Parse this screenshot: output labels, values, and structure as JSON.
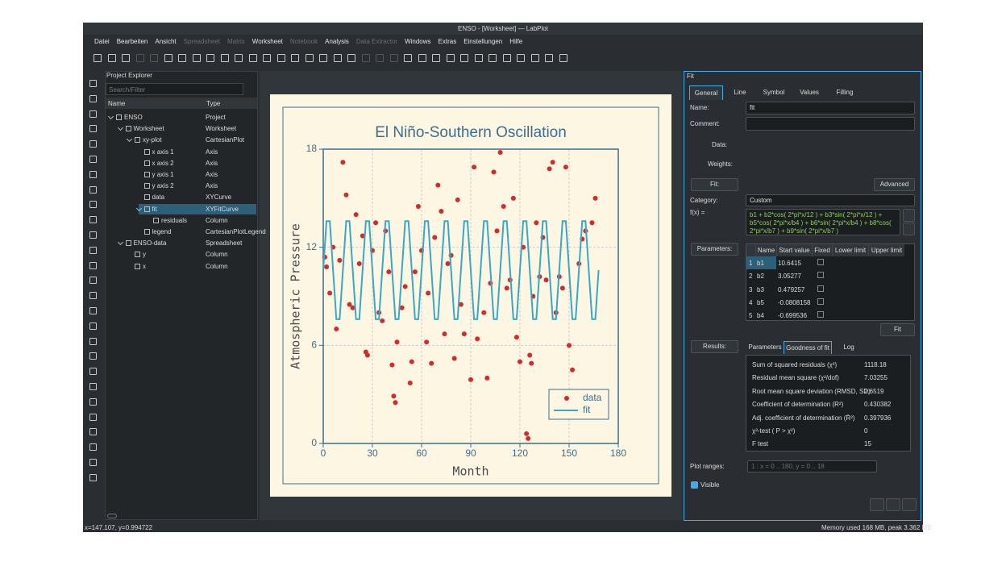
{
  "window": {
    "title": "ENSO - [Worksheet] — LabPlot"
  },
  "menu": [
    {
      "text": "Datei",
      "enabled": true
    },
    {
      "text": "Bearbeiten",
      "enabled": true
    },
    {
      "text": "Ansicht",
      "enabled": true
    },
    {
      "text": "Spreadsheet",
      "enabled": false
    },
    {
      "text": "Matrix",
      "enabled": false
    },
    {
      "text": "Worksheet",
      "enabled": true
    },
    {
      "text": "Notebook",
      "enabled": false
    },
    {
      "text": "Analysis",
      "enabled": true
    },
    {
      "text": "Data Extractor",
      "enabled": false
    },
    {
      "text": "Windows",
      "enabled": true
    },
    {
      "text": "Extras",
      "enabled": true
    },
    {
      "text": "Einstellungen",
      "enabled": true
    },
    {
      "text": "Hilfe",
      "enabled": true
    }
  ],
  "explorer": {
    "title": "Project Explorer",
    "search_placeholder": "Search/Filter",
    "columns": [
      "Name",
      "Type"
    ],
    "tree": [
      {
        "name": "ENSO",
        "type": "Project",
        "children": [
          {
            "name": "Worksheet",
            "type": "Worksheet",
            "children": [
              {
                "name": "xy-plot",
                "type": "CartesianPlot",
                "children": [
                  {
                    "name": "x axis 1",
                    "type": "Axis"
                  },
                  {
                    "name": "x axis 2",
                    "type": "Axis"
                  },
                  {
                    "name": "y axis 1",
                    "type": "Axis"
                  },
                  {
                    "name": "y axis 2",
                    "type": "Axis"
                  },
                  {
                    "name": "data",
                    "type": "XYCurve"
                  },
                  {
                    "name": "fit",
                    "type": "XYFitCurve",
                    "selected": true,
                    "children": [
                      {
                        "name": "residuals",
                        "type": "Column"
                      }
                    ]
                  },
                  {
                    "name": "legend",
                    "type": "CartesianPlotLegend"
                  }
                ]
              }
            ]
          },
          {
            "name": "ENSO-data",
            "type": "Spreadsheet",
            "children": [
              {
                "name": "y",
                "type": "Column"
              },
              {
                "name": "x",
                "type": "Column"
              }
            ]
          }
        ]
      }
    ]
  },
  "chart_data": {
    "type": "scatter",
    "title": "El Niño-Southern Oscillation",
    "x_label": "Month",
    "y_label": "Atmospheric Pressure",
    "xlim": [
      0,
      180
    ],
    "ylim": [
      0,
      18
    ],
    "xticks": [
      0,
      30,
      60,
      90,
      120,
      150,
      180
    ],
    "yticks": [
      0,
      6,
      12,
      18
    ],
    "grid": true,
    "legend": "lower right",
    "series": [
      {
        "name": "data",
        "color": "#d42a2a",
        "mode": "markers",
        "x": [
          1,
          2,
          4,
          6,
          8,
          10,
          12,
          14,
          16,
          18,
          20,
          22,
          24,
          26,
          27,
          30,
          32,
          34,
          36,
          38,
          40,
          42,
          43,
          44,
          45,
          48,
          50,
          53,
          54,
          56,
          58,
          60,
          63,
          64,
          66,
          68,
          70,
          72,
          74,
          76,
          78,
          80,
          82,
          84,
          86,
          90,
          92,
          94,
          98,
          100,
          102,
          104,
          106,
          108,
          110,
          112,
          114,
          116,
          118,
          120,
          122,
          124,
          125,
          126,
          127,
          128,
          130,
          132,
          134,
          136,
          138,
          140,
          142,
          144,
          146,
          148,
          150,
          152,
          156,
          158,
          160,
          164,
          166
        ],
        "values": [
          11.4,
          10.8,
          9.2,
          12.0,
          7.0,
          11.2,
          17.2,
          15.2,
          8.5,
          8.3,
          14.0,
          11.0,
          12.7,
          5.6,
          5.4,
          11.8,
          13.5,
          8.0,
          7.5,
          13.0,
          10.5,
          4.8,
          2.9,
          2.5,
          6.2,
          8.3,
          9.6,
          3.7,
          5.0,
          10.5,
          14.5,
          11.8,
          6.2,
          9.2,
          4.9,
          12.6,
          15.8,
          14.2,
          6.7,
          11.0,
          11.5,
          5.2,
          14.9,
          8.5,
          6.7,
          3.9,
          16.9,
          6.4,
          8.0,
          4.0,
          9.8,
          16.6,
          13.0,
          17.8,
          14.5,
          9.5,
          10.0,
          15.0,
          6.5,
          5.0,
          12.0,
          0.6,
          0.3,
          5.4,
          4.9,
          9.0,
          13.5,
          10.2,
          12.6,
          10.0,
          16.8,
          17.2,
          8.0,
          10.2,
          9.5,
          16.9,
          6.0,
          4.5,
          11.0,
          12.5,
          13.0,
          13.5,
          15.0
        ]
      },
      {
        "name": "fit",
        "color": "#36a9c9",
        "mode": "line",
        "x": [
          0,
          2,
          4,
          6,
          8,
          10,
          12,
          14,
          16,
          18,
          20,
          22,
          24,
          26,
          28,
          30,
          32,
          34,
          36,
          38,
          40,
          42,
          44,
          46,
          48,
          50,
          52,
          54,
          56,
          58,
          60,
          62,
          64,
          66,
          68,
          70,
          72,
          74,
          76,
          78,
          80,
          82,
          84,
          86,
          88,
          90,
          92,
          94,
          96,
          98,
          100,
          102,
          104,
          106,
          108,
          110,
          112,
          114,
          116,
          118,
          120,
          122,
          124,
          126,
          128,
          130,
          132,
          134,
          136,
          138,
          140,
          142,
          144,
          146,
          148,
          150,
          152,
          154,
          156,
          158,
          160,
          162,
          164,
          166,
          168
        ],
        "values": [
          10.6,
          13.6,
          13.6,
          10.6,
          7.6,
          7.6,
          10.6,
          13.6,
          13.6,
          10.6,
          7.6,
          7.6,
          10.6,
          13.6,
          13.6,
          10.6,
          7.6,
          7.6,
          10.6,
          13.6,
          13.6,
          10.6,
          7.6,
          7.6,
          10.6,
          13.6,
          13.6,
          10.6,
          7.6,
          7.6,
          10.6,
          13.6,
          13.6,
          10.6,
          7.6,
          7.6,
          10.6,
          13.6,
          13.6,
          10.6,
          7.6,
          7.6,
          10.6,
          13.6,
          13.6,
          10.6,
          7.6,
          7.6,
          10.6,
          13.6,
          13.6,
          10.6,
          7.6,
          7.6,
          10.6,
          13.6,
          13.6,
          10.6,
          7.6,
          7.6,
          10.6,
          13.6,
          13.6,
          10.6,
          7.6,
          7.6,
          10.6,
          13.6,
          13.6,
          10.6,
          7.6,
          7.6,
          10.6,
          13.6,
          13.6,
          10.6,
          7.6,
          7.6,
          10.6,
          13.6,
          13.6,
          10.6,
          7.6,
          7.6,
          10.6
        ]
      }
    ]
  },
  "fit_panel": {
    "title": "Fit",
    "tabs": [
      "General",
      "Line",
      "Symbol",
      "Values",
      "Filling"
    ],
    "name_label": "Name:",
    "name": "fit",
    "comment_label": "Comment:",
    "data_label": "Data:",
    "weights_label": "Weights:",
    "fit_label": "Fit:",
    "advanced": "Advanced",
    "category_label": "Category:",
    "category": "Custom",
    "fx_label": "f(x) =",
    "formula": "b1 + b2*cos( 2*pi*x/12 ) + b3*sin( 2*pi*x/12 ) + b5*cos( 2*pi*x/b4 ) + b6*sin( 2*pi*x/b4 ) + b8*cos( 2*pi*x/b7 ) + b9*sin( 2*pi*x/b7 )",
    "parameters_label": "Parameters:",
    "param_columns": [
      "Name",
      "Start value",
      "Fixed",
      "Lower limit",
      "Upper limit"
    ],
    "params": [
      {
        "number": 1,
        "name": "b1",
        "start": 10.6415
      },
      {
        "number": 2,
        "name": "b2",
        "start": 3.05277
      },
      {
        "number": 3,
        "name": "b3",
        "start": 0.479257
      },
      {
        "number": 4,
        "name": "b5",
        "start": -0.0808158
      },
      {
        "number": 5,
        "name": "b4",
        "start": -0.699536
      }
    ],
    "fit_button": "Fit",
    "results_label": "Results:",
    "result_tabs": [
      "Parameters",
      "Goodness of fit",
      "Log"
    ],
    "results": [
      {
        "label": "Sum of squared residuals (χ²)",
        "value": 1118.18
      },
      {
        "label": "Residual mean square (χ²/dof)",
        "value": 7.03255
      },
      {
        "label": "Root mean square deviation (RMSD, SD)",
        "value": 2.6519
      },
      {
        "label": "Coefficient of determination (R²)",
        "value": 0.430382
      },
      {
        "label": "Adj. coefficient of determination (R̄²)",
        "value": 0.397936
      },
      {
        "label": "χ²-test ( P > χ²)",
        "value": 0
      },
      {
        "label": "F test",
        "value": 15
      }
    ],
    "plot_ranges_label": "Plot ranges:",
    "plot_ranges": "1 : x = 0 .. 180, y = 0 .. 18",
    "visible_label": "Visible"
  },
  "status": {
    "coordinates": "x=147.107, y=0.994722",
    "memory": "Memory used 168 MB, peak 3.362 MB"
  }
}
